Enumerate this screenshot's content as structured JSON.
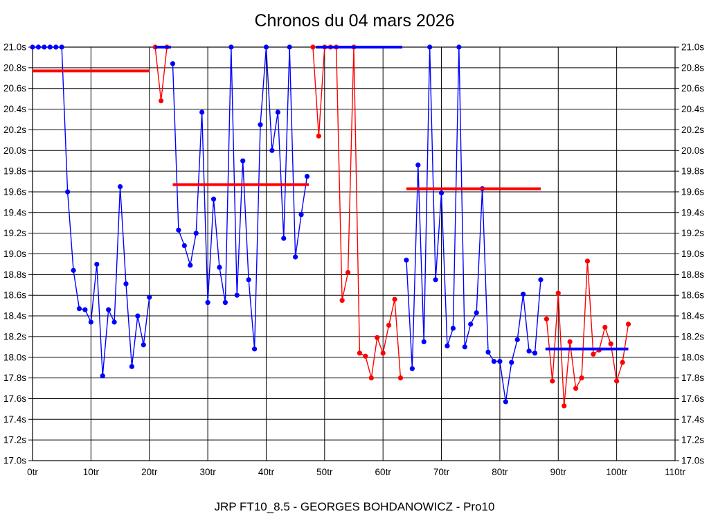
{
  "chart_data": {
    "type": "line",
    "title": "Chronos du 04 mars 2026",
    "footer": "JRP FT10_8.5 - GEORGES BOHDANOWICZ - Pro10",
    "x_unit": "tr",
    "y_unit": "s",
    "xlim": [
      0,
      110
    ],
    "x_tick_step": 10,
    "ylim": [
      17.0,
      21.0
    ],
    "y_tick_step": 0.2,
    "clip_max": 21.0,
    "grid": true,
    "colors": {
      "blue": "#0000ff",
      "red": "#ff0000",
      "grid": "#000000",
      "background": "#ffffff"
    },
    "runs": [
      {
        "name": "run-1",
        "color": "blue",
        "start_lap": 0,
        "lap_times": [
          21.0,
          21.0,
          21.0,
          21.0,
          21.0,
          21.0,
          19.6,
          18.84,
          18.47,
          18.46,
          18.34,
          18.9,
          17.82,
          18.46,
          18.34,
          19.65,
          18.71,
          17.91,
          18.4,
          18.12,
          18.58
        ],
        "avg_line": {
          "color": "red",
          "value": 20.77,
          "from_lap": 0,
          "to_lap": 20
        }
      },
      {
        "name": "run-2",
        "color": "red",
        "start_lap": 21,
        "lap_times": [
          21.0,
          20.48,
          21.0
        ],
        "avg_line": {
          "color": "blue",
          "value": 21.0,
          "from_lap": 21,
          "to_lap": 23.7
        }
      },
      {
        "name": "run-3",
        "color": "blue",
        "start_lap": 24,
        "lap_times": [
          20.84,
          19.23,
          19.08,
          18.89,
          19.2,
          20.37,
          18.53,
          19.53,
          18.87,
          18.53,
          21.0,
          18.6,
          19.9,
          18.75,
          18.08,
          20.25,
          21.0,
          20.0,
          20.37,
          19.15,
          21.0,
          18.97,
          19.38,
          19.75
        ],
        "avg_line": {
          "color": "red",
          "value": 19.67,
          "from_lap": 24,
          "to_lap": 47.3
        }
      },
      {
        "name": "run-4",
        "color": "red",
        "start_lap": 48,
        "lap_times": [
          21.0,
          20.14,
          21.0,
          21.0,
          21.0,
          18.55,
          18.82,
          21.0,
          18.04,
          18.01,
          17.8,
          18.19,
          18.04,
          18.31,
          18.56,
          17.8
        ],
        "avg_line": {
          "color": "blue",
          "value": 21.0,
          "from_lap": 48.5,
          "to_lap": 63.3
        }
      },
      {
        "name": "run-5",
        "color": "blue",
        "start_lap": 64,
        "lap_times": [
          18.94,
          17.89,
          19.86,
          18.15,
          21.0,
          18.75,
          19.59,
          18.11,
          18.28,
          21.0,
          18.1,
          18.32,
          18.43,
          19.63,
          18.05,
          17.96,
          17.96,
          17.57,
          17.95,
          18.17,
          18.61,
          18.06,
          18.04,
          18.75
        ],
        "avg_line": {
          "color": "red",
          "value": 19.63,
          "from_lap": 64,
          "to_lap": 87
        }
      },
      {
        "name": "run-6",
        "color": "red",
        "start_lap": 88,
        "lap_times": [
          18.37,
          17.77,
          18.62,
          17.53,
          18.15,
          17.7,
          17.8,
          18.93,
          18.03,
          18.07,
          18.29,
          18.13,
          17.77,
          17.95,
          18.32
        ],
        "avg_line": {
          "color": "blue",
          "value": 18.08,
          "from_lap": 87.8,
          "to_lap": 102
        }
      }
    ]
  }
}
